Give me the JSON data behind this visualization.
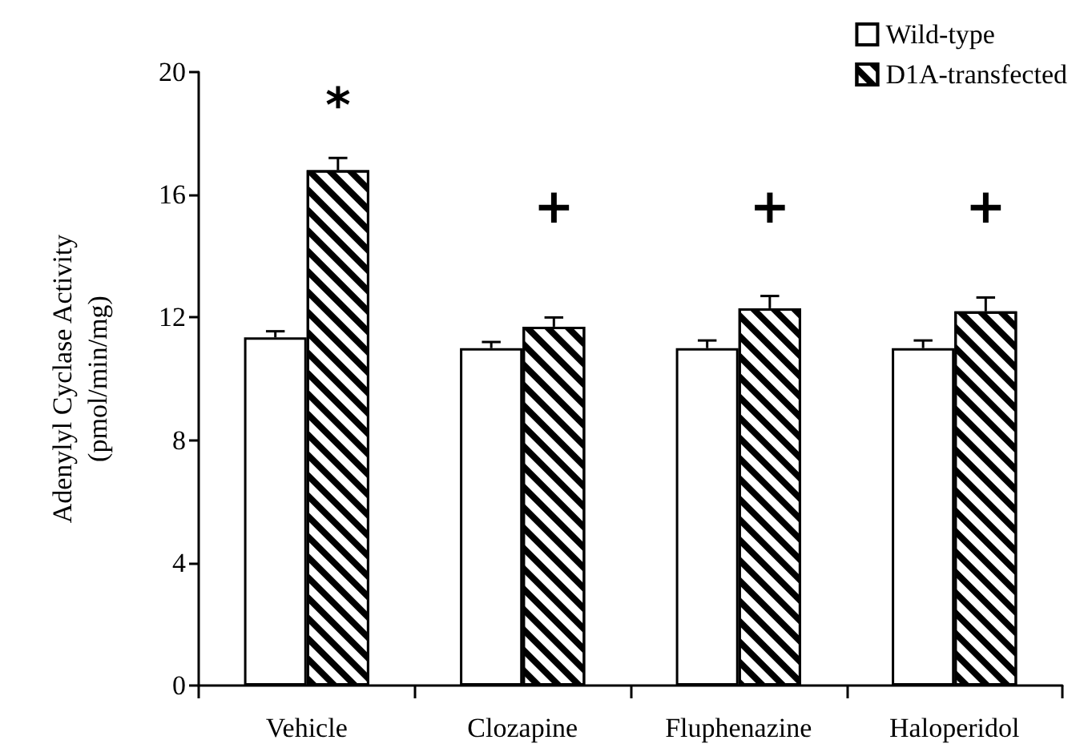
{
  "chart_data": {
    "type": "bar",
    "ylabel": "Adenylyl Cyclase Activity\n(pmol/min/mg)",
    "categories": [
      "Vehicle",
      "Clozapine",
      "Fluphenazine",
      "Haloperidol"
    ],
    "series": [
      {
        "name": "Wild-type",
        "color": "#ffffff",
        "values": [
          11.35,
          11.0,
          11.0,
          11.0
        ],
        "errors": [
          0.2,
          0.2,
          0.25,
          0.25
        ]
      },
      {
        "name": "D1A-transfected",
        "color": "#000000",
        "values": [
          16.8,
          11.7,
          12.3,
          12.2
        ],
        "errors": [
          0.4,
          0.3,
          0.4,
          0.45
        ]
      }
    ],
    "ylim": [
      0,
      20
    ],
    "yticks": [
      0,
      4,
      8,
      12,
      16,
      20
    ],
    "grid": false,
    "legend": "top right",
    "annotations": [
      "*",
      "+",
      "+",
      "+"
    ]
  }
}
